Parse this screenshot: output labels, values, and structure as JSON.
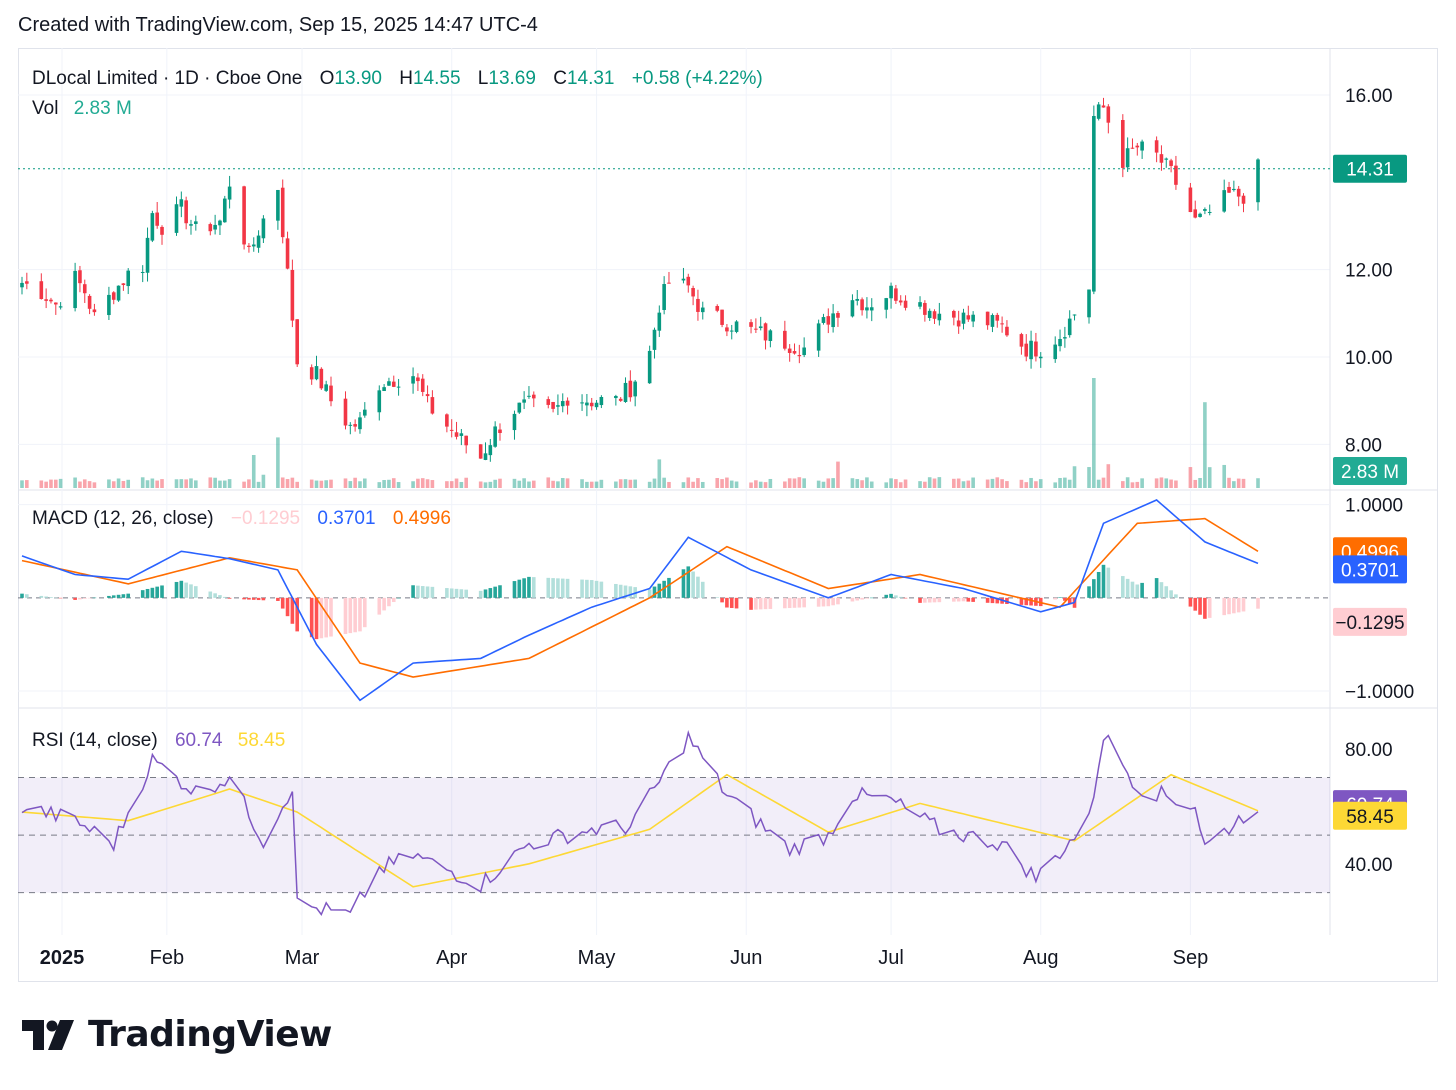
{
  "header": {
    "created": "Created with TradingView.com, Sep 15, 2025 14:47 UTC-4"
  },
  "legend": {
    "symbol": "DLocal Limited · 1D · Cboe One",
    "o_label": "O",
    "o_value": "13.90",
    "h_label": "H",
    "h_value": "14.55",
    "l_label": "L",
    "l_value": "13.69",
    "c_label": "C",
    "c_value": "14.31",
    "change": "+0.58 (+4.22%)",
    "vol_label": "Vol",
    "vol_value": "2.83 M"
  },
  "macd_legend": {
    "label": "MACD (12, 26, close)",
    "hist": "−0.1295",
    "macd": "0.3701",
    "signal": "0.4996"
  },
  "rsi_legend": {
    "label": "RSI (14, close)",
    "rsi": "60.74",
    "ma": "58.45"
  },
  "badges": {
    "price": "14.31",
    "volume": "2.83 M",
    "signal": "0.4996",
    "macd": "0.3701",
    "hist": "−0.1295",
    "rsi": "60.74",
    "rsi_ma": "58.45"
  },
  "colors": {
    "up": "#089981",
    "down": "#f23645",
    "macd": "#2962ff",
    "signal": "#ff6d00",
    "rsi": "#7e57c2",
    "rsi_ma": "#fdd835",
    "grid": "#f0f3fa"
  },
  "brand": {
    "logo_text": "TradingView",
    "logo_icon": "tradingview-logo-icon"
  },
  "chart_data": [
    {
      "type": "candlestick",
      "symbol": "DLocal Limited",
      "interval": "1D",
      "price_axis_ticks": [
        "8.00",
        "10.00",
        "12.00",
        "16.00"
      ],
      "ylim": [
        7.0,
        16.8
      ],
      "time_axis_labels": [
        "2025",
        "Feb",
        "Mar",
        "Apr",
        "May",
        "Jun",
        "Jul",
        "Aug",
        "Sep"
      ],
      "last_close": 14.31,
      "close_path": [
        {
          "date": "2025-01-02",
          "close": 11.7
        },
        {
          "date": "2025-01-06",
          "close": 11.5
        },
        {
          "date": "2025-01-09",
          "close": 11.2
        },
        {
          "date": "2025-01-13",
          "close": 11.8
        },
        {
          "date": "2025-01-15",
          "close": 11.5
        },
        {
          "date": "2025-01-17",
          "close": 10.9
        },
        {
          "date": "2025-01-21",
          "close": 11.5
        },
        {
          "date": "2025-01-24",
          "close": 11.9
        },
        {
          "date": "2025-01-27",
          "close": 12.1
        },
        {
          "date": "2025-01-29",
          "close": 13.3
        },
        {
          "date": "2025-01-31",
          "close": 13.0
        },
        {
          "date": "2025-02-04",
          "close": 13.4
        },
        {
          "date": "2025-02-07",
          "close": 12.9
        },
        {
          "date": "2025-02-12",
          "close": 13.1
        },
        {
          "date": "2025-02-14",
          "close": 14.0
        },
        {
          "date": "2025-02-18",
          "close": 12.3
        },
        {
          "date": "2025-02-20",
          "close": 12.9
        },
        {
          "date": "2025-02-24",
          "close": 13.9
        },
        {
          "date": "2025-02-28",
          "close": 9.9
        },
        {
          "date": "2025-03-04",
          "close": 9.6
        },
        {
          "date": "2025-03-07",
          "close": 9.0
        },
        {
          "date": "2025-03-11",
          "close": 8.4
        },
        {
          "date": "2025-03-13",
          "close": 8.5
        },
        {
          "date": "2025-03-17",
          "close": 9.4
        },
        {
          "date": "2025-03-20",
          "close": 9.5
        },
        {
          "date": "2025-03-24",
          "close": 9.6
        },
        {
          "date": "2025-03-27",
          "close": 8.9
        },
        {
          "date": "2025-04-02",
          "close": 8.2
        },
        {
          "date": "2025-04-07",
          "close": 7.7
        },
        {
          "date": "2025-04-10",
          "close": 8.3
        },
        {
          "date": "2025-04-14",
          "close": 8.8
        },
        {
          "date": "2025-04-17",
          "close": 8.9
        },
        {
          "date": "2025-04-22",
          "close": 8.7
        },
        {
          "date": "2025-04-25",
          "close": 9.1
        },
        {
          "date": "2025-04-30",
          "close": 9.0
        },
        {
          "date": "2025-05-05",
          "close": 9.0
        },
        {
          "date": "2025-05-08",
          "close": 9.3
        },
        {
          "date": "2025-05-12",
          "close": 10.1
        },
        {
          "date": "2025-05-14",
          "close": 11.2
        },
        {
          "date": "2025-05-16",
          "close": 11.7
        },
        {
          "date": "2025-05-20",
          "close": 11.6
        },
        {
          "date": "2025-05-23",
          "close": 11.0
        },
        {
          "date": "2025-05-28",
          "close": 10.8
        },
        {
          "date": "2025-06-02",
          "close": 10.6
        },
        {
          "date": "2025-06-05",
          "close": 10.5
        },
        {
          "date": "2025-06-10",
          "close": 10.3
        },
        {
          "date": "2025-06-13",
          "close": 10.2
        },
        {
          "date": "2025-06-18",
          "close": 10.9
        },
        {
          "date": "2025-06-23",
          "close": 11.4
        },
        {
          "date": "2025-06-26",
          "close": 11.2
        },
        {
          "date": "2025-07-01",
          "close": 11.5
        },
        {
          "date": "2025-07-07",
          "close": 11.2
        },
        {
          "date": "2025-07-11",
          "close": 11.0
        },
        {
          "date": "2025-07-16",
          "close": 10.9
        },
        {
          "date": "2025-07-21",
          "close": 10.8
        },
        {
          "date": "2025-07-24",
          "close": 10.7
        },
        {
          "date": "2025-07-29",
          "close": 10.2
        },
        {
          "date": "2025-08-01",
          "close": 10.2
        },
        {
          "date": "2025-08-05",
          "close": 10.5
        },
        {
          "date": "2025-08-08",
          "close": 11.0
        },
        {
          "date": "2025-08-11",
          "close": 11.6
        },
        {
          "date": "2025-08-12",
          "close": 15.5
        },
        {
          "date": "2025-08-14",
          "close": 15.7
        },
        {
          "date": "2025-08-18",
          "close": 14.5
        },
        {
          "date": "2025-08-21",
          "close": 14.8
        },
        {
          "date": "2025-08-25",
          "close": 14.6
        },
        {
          "date": "2025-08-28",
          "close": 14.2
        },
        {
          "date": "2025-09-02",
          "close": 13.1
        },
        {
          "date": "2025-09-04",
          "close": 13.2
        },
        {
          "date": "2025-09-09",
          "close": 13.7
        },
        {
          "date": "2025-09-12",
          "close": 13.7
        },
        {
          "date": "2025-09-15",
          "close": 14.31
        }
      ]
    },
    {
      "type": "bar",
      "name": "Vol",
      "last_value": "2.83 M",
      "series": [
        {
          "date": "2025-02-19",
          "relative": 0.3
        },
        {
          "date": "2025-02-24",
          "relative": 0.46
        },
        {
          "date": "2025-05-14",
          "relative": 0.26
        },
        {
          "date": "2025-06-20",
          "relative": 0.24
        },
        {
          "date": "2025-08-12",
          "relative": 1.0
        },
        {
          "date": "2025-09-04",
          "relative": 0.78
        }
      ]
    },
    {
      "type": "line",
      "name": "MACD (12, 26, close)",
      "yticks": [
        "1.0000",
        "−1.0000"
      ],
      "ylim": [
        -1.15,
        1.05
      ],
      "last": {
        "histogram": -0.1295,
        "macd": 0.3701,
        "signal": 0.4996
      },
      "macd_path": [
        {
          "date": "2025-01-02",
          "v": 0.45
        },
        {
          "date": "2025-01-13",
          "v": 0.25
        },
        {
          "date": "2025-01-24",
          "v": 0.2
        },
        {
          "date": "2025-02-04",
          "v": 0.5
        },
        {
          "date": "2025-02-14",
          "v": 0.42
        },
        {
          "date": "2025-02-24",
          "v": 0.3
        },
        {
          "date": "2025-03-04",
          "v": -0.5
        },
        {
          "date": "2025-03-13",
          "v": -1.1
        },
        {
          "date": "2025-03-24",
          "v": -0.7
        },
        {
          "date": "2025-04-07",
          "v": -0.65
        },
        {
          "date": "2025-04-17",
          "v": -0.4
        },
        {
          "date": "2025-04-30",
          "v": -0.1
        },
        {
          "date": "2025-05-12",
          "v": 0.1
        },
        {
          "date": "2025-05-20",
          "v": 0.65
        },
        {
          "date": "2025-06-02",
          "v": 0.3
        },
        {
          "date": "2025-06-18",
          "v": 0.0
        },
        {
          "date": "2025-07-01",
          "v": 0.25
        },
        {
          "date": "2025-07-16",
          "v": 0.1
        },
        {
          "date": "2025-08-01",
          "v": -0.15
        },
        {
          "date": "2025-08-08",
          "v": -0.05
        },
        {
          "date": "2025-08-14",
          "v": 0.8
        },
        {
          "date": "2025-08-25",
          "v": 1.05
        },
        {
          "date": "2025-09-04",
          "v": 0.6
        },
        {
          "date": "2025-09-15",
          "v": 0.3701
        }
      ],
      "signal_path": [
        {
          "date": "2025-01-02",
          "v": 0.4
        },
        {
          "date": "2025-01-24",
          "v": 0.15
        },
        {
          "date": "2025-02-14",
          "v": 0.43
        },
        {
          "date": "2025-02-28",
          "v": 0.3
        },
        {
          "date": "2025-03-13",
          "v": -0.7
        },
        {
          "date": "2025-03-24",
          "v": -0.85
        },
        {
          "date": "2025-04-17",
          "v": -0.65
        },
        {
          "date": "2025-05-12",
          "v": 0.0
        },
        {
          "date": "2025-05-28",
          "v": 0.55
        },
        {
          "date": "2025-06-18",
          "v": 0.1
        },
        {
          "date": "2025-07-07",
          "v": 0.25
        },
        {
          "date": "2025-08-05",
          "v": -0.1
        },
        {
          "date": "2025-08-21",
          "v": 0.8
        },
        {
          "date": "2025-09-04",
          "v": 0.85
        },
        {
          "date": "2025-09-15",
          "v": 0.4996
        }
      ]
    },
    {
      "type": "line",
      "name": "RSI (14, close)",
      "yticks": [
        "80.00",
        "40.00"
      ],
      "ylim": [
        17,
        90
      ],
      "bands": [
        70,
        50,
        30
      ],
      "last": {
        "rsi": 60.74,
        "ma": 58.45
      },
      "rsi_path": [
        {
          "date": "2025-01-02",
          "v": 60
        },
        {
          "date": "2025-01-13",
          "v": 55
        },
        {
          "date": "2025-01-21",
          "v": 47
        },
        {
          "date": "2025-01-29",
          "v": 76
        },
        {
          "date": "2025-02-07",
          "v": 65
        },
        {
          "date": "2025-02-14",
          "v": 70
        },
        {
          "date": "2025-02-21",
          "v": 48
        },
        {
          "date": "2025-02-27",
          "v": 67
        },
        {
          "date": "2025-02-28",
          "v": 26
        },
        {
          "date": "2025-03-11",
          "v": 22
        },
        {
          "date": "2025-03-17",
          "v": 38
        },
        {
          "date": "2025-03-24",
          "v": 43
        },
        {
          "date": "2025-04-07",
          "v": 33
        },
        {
          "date": "2025-04-17",
          "v": 47
        },
        {
          "date": "2025-04-30",
          "v": 52
        },
        {
          "date": "2025-05-08",
          "v": 53
        },
        {
          "date": "2025-05-20",
          "v": 84
        },
        {
          "date": "2025-05-28",
          "v": 64
        },
        {
          "date": "2025-06-10",
          "v": 45
        },
        {
          "date": "2025-06-18",
          "v": 50
        },
        {
          "date": "2025-06-23",
          "v": 64
        },
        {
          "date": "2025-07-01",
          "v": 62
        },
        {
          "date": "2025-07-11",
          "v": 52
        },
        {
          "date": "2025-07-24",
          "v": 47
        },
        {
          "date": "2025-07-31",
          "v": 35
        },
        {
          "date": "2025-08-11",
          "v": 55
        },
        {
          "date": "2025-08-14",
          "v": 85
        },
        {
          "date": "2025-08-21",
          "v": 67
        },
        {
          "date": "2025-09-02",
          "v": 60
        },
        {
          "date": "2025-09-04",
          "v": 46
        },
        {
          "date": "2025-09-15",
          "v": 60.74
        }
      ],
      "ma_path": [
        {
          "date": "2025-01-02",
          "v": 58
        },
        {
          "date": "2025-01-24",
          "v": 55
        },
        {
          "date": "2025-02-14",
          "v": 66
        },
        {
          "date": "2025-02-28",
          "v": 58
        },
        {
          "date": "2025-03-24",
          "v": 32
        },
        {
          "date": "2025-04-17",
          "v": 40
        },
        {
          "date": "2025-05-12",
          "v": 52
        },
        {
          "date": "2025-05-28",
          "v": 71
        },
        {
          "date": "2025-06-18",
          "v": 51
        },
        {
          "date": "2025-07-07",
          "v": 61
        },
        {
          "date": "2025-08-08",
          "v": 48
        },
        {
          "date": "2025-08-28",
          "v": 71
        },
        {
          "date": "2025-09-15",
          "v": 58.45
        }
      ]
    }
  ]
}
